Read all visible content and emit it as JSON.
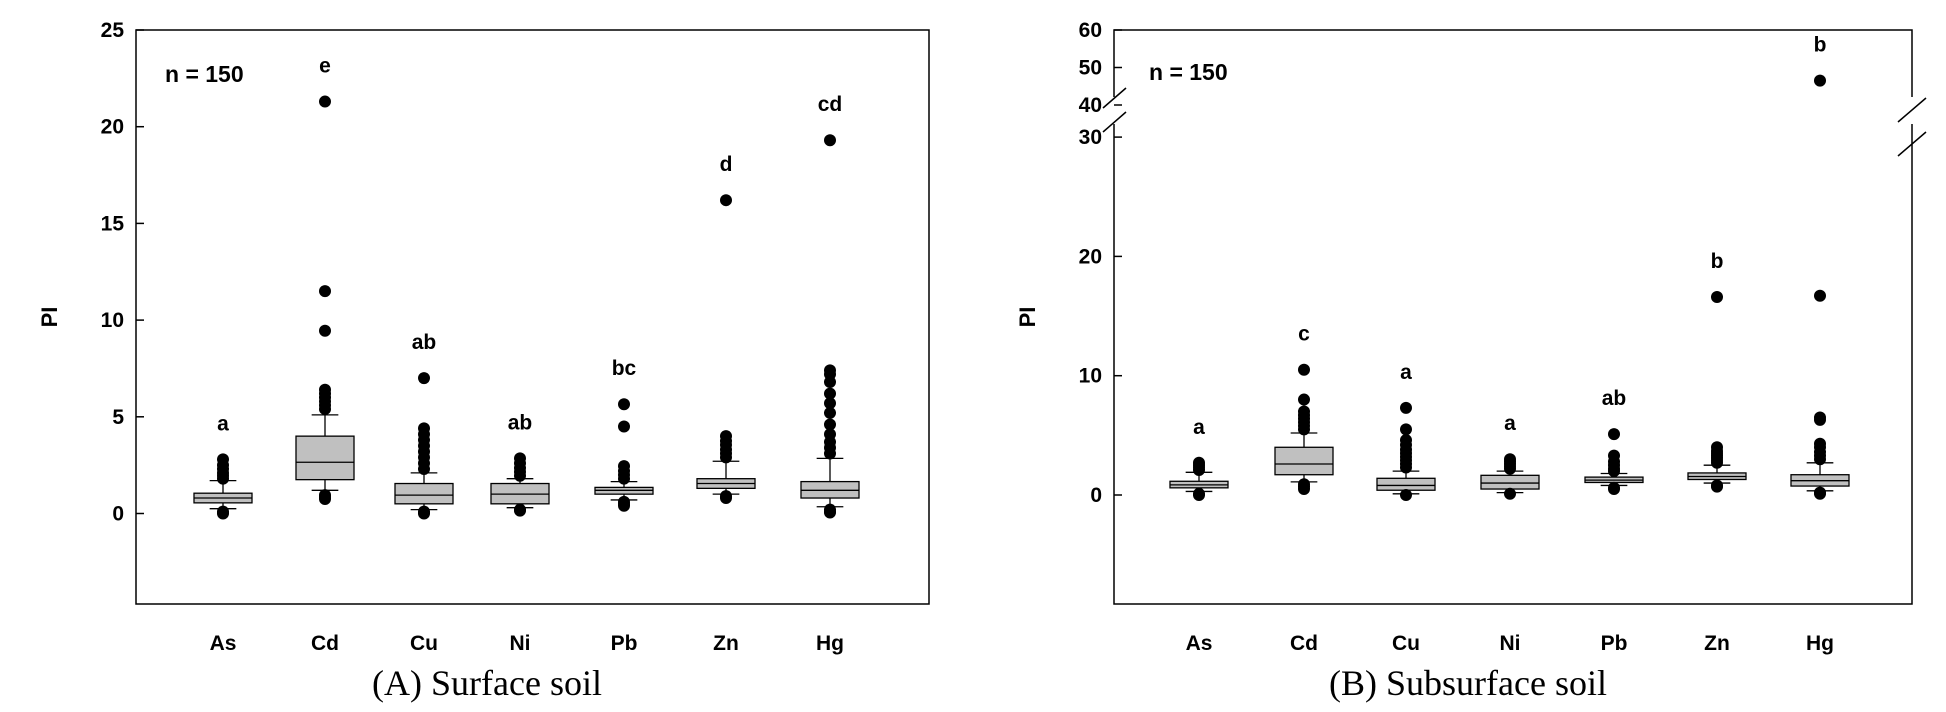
{
  "chart_data": [
    {
      "type": "box",
      "panel": "A",
      "caption": "(A) Surface soil",
      "ylabel": "PI",
      "annotation": "n = 150",
      "ylim": [
        -4.5,
        25
      ],
      "yticks": [
        0,
        5,
        10,
        15,
        20,
        25
      ],
      "ytick_labels": [
        "0",
        "5",
        "10",
        "15",
        "20",
        "25"
      ],
      "categories": [
        "As",
        "Cd",
        "Cu",
        "Ni",
        "Pb",
        "Zn",
        "Hg"
      ],
      "boxes": [
        {
          "q1": 0.55,
          "median": 0.8,
          "q3": 1.05,
          "whisker_low": 0.25,
          "whisker_high": 1.7,
          "outliers": [
            0.0,
            0.05,
            0.1,
            1.8,
            1.95,
            2.1,
            2.3,
            2.5,
            2.8
          ],
          "letter": "a"
        },
        {
          "q1": 1.75,
          "median": 2.65,
          "q3": 4.0,
          "whisker_low": 1.2,
          "whisker_high": 5.1,
          "outliers": [
            0.75,
            0.85,
            0.95,
            5.4,
            5.6,
            5.8,
            6.0,
            6.2,
            6.4,
            9.45,
            11.5,
            21.3
          ],
          "letter": "e"
        },
        {
          "q1": 0.5,
          "median": 0.95,
          "q3": 1.55,
          "whisker_low": 0.2,
          "whisker_high": 2.1,
          "outliers": [
            0.0,
            0.05,
            0.1,
            2.3,
            2.6,
            2.9,
            3.2,
            3.5,
            3.8,
            4.1,
            4.4,
            7.0
          ],
          "letter": "ab"
        },
        {
          "q1": 0.5,
          "median": 1.0,
          "q3": 1.55,
          "whisker_low": 0.3,
          "whisker_high": 1.8,
          "outliers": [
            0.15,
            0.2,
            1.95,
            2.15,
            2.35,
            2.6,
            2.85
          ],
          "letter": "ab"
        },
        {
          "q1": 1.0,
          "median": 1.2,
          "q3": 1.35,
          "whisker_low": 0.7,
          "whisker_high": 1.65,
          "outliers": [
            0.4,
            0.5,
            0.6,
            1.8,
            2.0,
            2.2,
            2.45,
            4.5,
            5.65
          ],
          "letter": "bc"
        },
        {
          "q1": 1.3,
          "median": 1.55,
          "q3": 1.8,
          "whisker_low": 1.0,
          "whisker_high": 2.7,
          "outliers": [
            0.8,
            0.9,
            2.9,
            3.1,
            3.3,
            3.55,
            3.75,
            4.0,
            16.2
          ],
          "letter": "d"
        },
        {
          "q1": 0.8,
          "median": 1.2,
          "q3": 1.65,
          "whisker_low": 0.35,
          "whisker_high": 2.85,
          "outliers": [
            0.05,
            0.1,
            0.2,
            3.1,
            3.4,
            3.7,
            4.1,
            4.6,
            5.2,
            5.7,
            6.2,
            6.8,
            7.2,
            7.4,
            19.3
          ],
          "letter": "cd"
        }
      ]
    },
    {
      "type": "box",
      "panel": "B",
      "caption": "(B) Subsurface soil",
      "ylabel": "PI",
      "annotation": "n = 150",
      "ylim": [
        -9,
        60
      ],
      "axis_break": [
        30,
        40
      ],
      "yticks": [
        0,
        10,
        20,
        30,
        40,
        50,
        60
      ],
      "ytick_labels": [
        "0",
        "10",
        "20",
        "30",
        "40",
        "50",
        "60"
      ],
      "categories": [
        "As",
        "Cd",
        "Cu",
        "Ni",
        "Pb",
        "Zn",
        "Hg"
      ],
      "boxes": [
        {
          "q1": 0.6,
          "median": 0.85,
          "q3": 1.15,
          "whisker_low": 0.3,
          "whisker_high": 1.9,
          "outliers": [
            0.0,
            0.1,
            2.1,
            2.3,
            2.5,
            2.7
          ],
          "letter": "a"
        },
        {
          "q1": 1.7,
          "median": 2.6,
          "q3": 4.0,
          "whisker_low": 1.1,
          "whisker_high": 5.2,
          "outliers": [
            0.5,
            0.7,
            0.9,
            5.5,
            5.8,
            6.1,
            6.4,
            6.7,
            7.0,
            8.0,
            10.5
          ],
          "letter": "c"
        },
        {
          "q1": 0.4,
          "median": 0.8,
          "q3": 1.4,
          "whisker_low": 0.1,
          "whisker_high": 2.0,
          "outliers": [
            0.0,
            2.3,
            2.6,
            2.9,
            3.2,
            3.5,
            3.8,
            4.2,
            4.6,
            5.5,
            7.3
          ],
          "letter": "a"
        },
        {
          "q1": 0.5,
          "median": 1.0,
          "q3": 1.65,
          "whisker_low": 0.2,
          "whisker_high": 2.0,
          "outliers": [
            0.1,
            2.2,
            2.4,
            2.6,
            2.8,
            3.0
          ],
          "letter": "a"
        },
        {
          "q1": 1.05,
          "median": 1.25,
          "q3": 1.5,
          "whisker_low": 0.8,
          "whisker_high": 1.8,
          "outliers": [
            0.5,
            0.6,
            2.0,
            2.2,
            2.5,
            2.8,
            3.3,
            5.1
          ],
          "letter": "ab"
        },
        {
          "q1": 1.3,
          "median": 1.55,
          "q3": 1.85,
          "whisker_low": 1.0,
          "whisker_high": 2.5,
          "outliers": [
            0.7,
            0.8,
            2.7,
            2.9,
            3.1,
            3.3,
            3.5,
            3.7,
            4.0,
            16.6
          ],
          "letter": "b"
        },
        {
          "q1": 0.75,
          "median": 1.2,
          "q3": 1.7,
          "whisker_low": 0.35,
          "whisker_high": 2.7,
          "outliers": [
            0.1,
            0.2,
            3.0,
            3.3,
            3.6,
            4.0,
            4.3,
            6.3,
            6.5,
            16.7,
            46.5
          ],
          "letter": "b"
        }
      ]
    }
  ]
}
